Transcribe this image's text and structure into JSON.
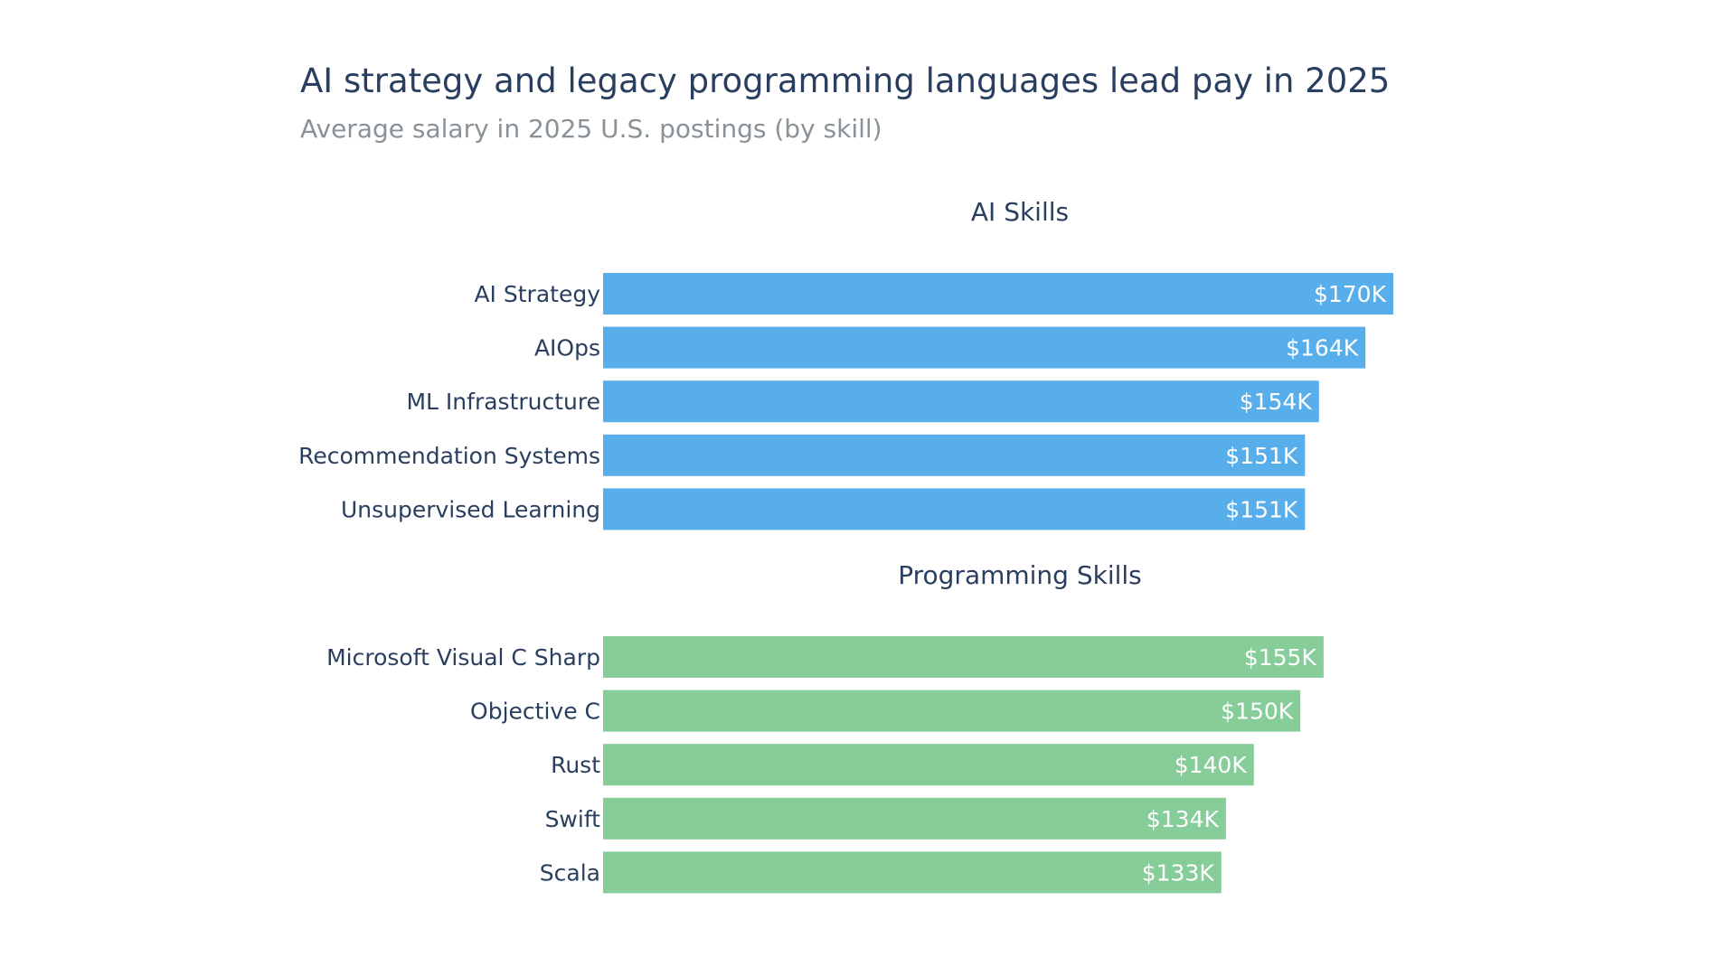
{
  "chart_data": {
    "type": "bar",
    "orientation": "horizontal",
    "title": "AI strategy and legacy programming languages lead pay in 2025",
    "subtitle": "Average salary in 2025 U.S. postings (by skill)",
    "xlim": [
      0,
      170
    ],
    "grid": false,
    "legend": "none",
    "panels": [
      {
        "title": "AI Skills",
        "color": "#57aeeb",
        "categories": [
          "AI Strategy",
          "AIOps",
          "ML Infrastructure",
          "Recommendation Systems",
          "Unsupervised Learning"
        ],
        "values": [
          170,
          164,
          154,
          151,
          151
        ],
        "labels": [
          "$170K",
          "$164K",
          "$154K",
          "$151K",
          "$151K"
        ]
      },
      {
        "title": "Programming Skills",
        "color": "#86cd99",
        "categories": [
          "Microsoft Visual C Sharp",
          "Objective C",
          "Rust",
          "Swift",
          "Scala"
        ],
        "values": [
          155,
          150,
          140,
          134,
          133
        ],
        "labels": [
          "$155K",
          "$150K",
          "$140K",
          "$134K",
          "$133K"
        ]
      }
    ]
  }
}
